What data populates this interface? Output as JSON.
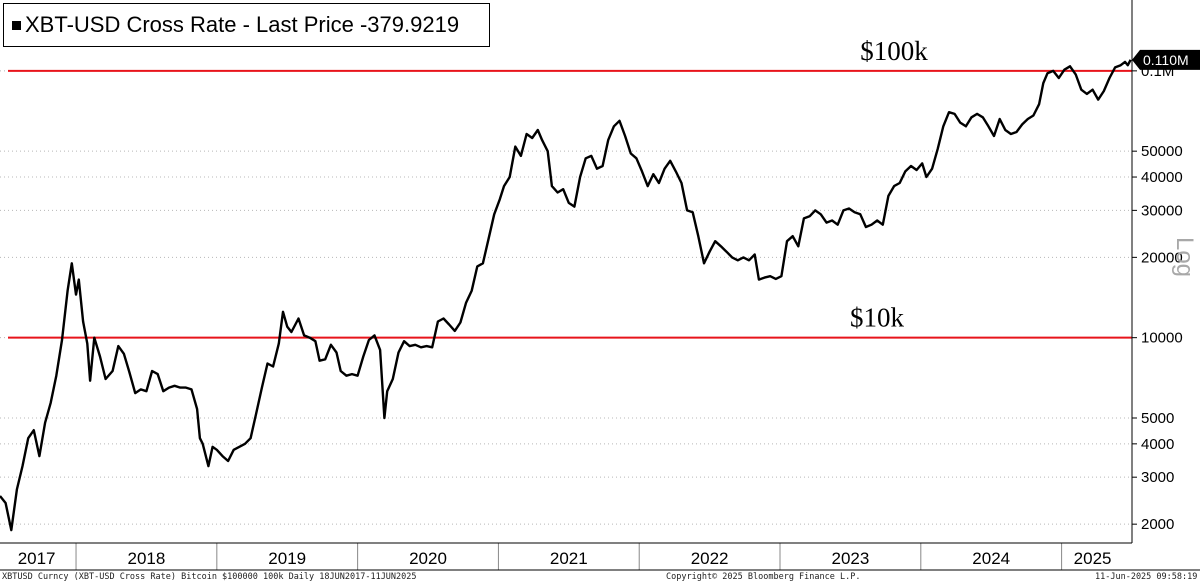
{
  "chart_data": {
    "type": "line",
    "title": "XBT-USD Cross Rate - Last Price  -379.9219",
    "ylabel": "Log",
    "yscale": "log",
    "ylim": [
      1700,
      125000
    ],
    "yticks": [
      {
        "value": 2000,
        "label": "2000"
      },
      {
        "value": 3000,
        "label": "3000"
      },
      {
        "value": 4000,
        "label": "4000"
      },
      {
        "value": 5000,
        "label": "5000"
      },
      {
        "value": 10000,
        "label": "10000"
      },
      {
        "value": 20000,
        "label": "20000"
      },
      {
        "value": 30000,
        "label": "30000"
      },
      {
        "value": 40000,
        "label": "40000"
      },
      {
        "value": 50000,
        "label": "50000"
      },
      {
        "value": 100000,
        "label": "0.1M"
      }
    ],
    "xlim": [
      2017.46,
      2025.5
    ],
    "x_labels": [
      {
        "label": "2017",
        "value": 2017.72
      },
      {
        "label": "2018",
        "value": 2018.5
      },
      {
        "label": "2019",
        "value": 2019.5
      },
      {
        "label": "2020",
        "value": 2020.5
      },
      {
        "label": "2021",
        "value": 2021.5
      },
      {
        "label": "2022",
        "value": 2022.5
      },
      {
        "label": "2023",
        "value": 2023.5
      },
      {
        "label": "2024",
        "value": 2024.5
      },
      {
        "label": "2025",
        "value": 2025.22
      }
    ],
    "x_dividers": [
      2018.0,
      2019.0,
      2020.0,
      2021.0,
      2022.0,
      2023.0,
      2024.0,
      2025.0
    ],
    "reference_lines": [
      {
        "value": 100000,
        "label": "$100k",
        "color": "#e8141b"
      },
      {
        "value": 10000,
        "label": "$10k",
        "color": "#e8141b"
      }
    ],
    "last_value_tag": "0.110M",
    "series": [
      {
        "color": "#000000",
        "points": [
          [
            2017.46,
            2550
          ],
          [
            2017.5,
            2400
          ],
          [
            2017.54,
            1900
          ],
          [
            2017.58,
            2700
          ],
          [
            2017.62,
            3300
          ],
          [
            2017.66,
            4200
          ],
          [
            2017.7,
            4500
          ],
          [
            2017.74,
            3600
          ],
          [
            2017.78,
            4800
          ],
          [
            2017.82,
            5700
          ],
          [
            2017.86,
            7200
          ],
          [
            2017.9,
            9800
          ],
          [
            2017.94,
            15000
          ],
          [
            2017.97,
            19000
          ],
          [
            2018.0,
            14500
          ],
          [
            2018.02,
            16500
          ],
          [
            2018.05,
            11500
          ],
          [
            2018.08,
            9500
          ],
          [
            2018.1,
            6900
          ],
          [
            2018.13,
            10000
          ],
          [
            2018.17,
            8500
          ],
          [
            2018.21,
            7000
          ],
          [
            2018.26,
            7500
          ],
          [
            2018.3,
            9300
          ],
          [
            2018.34,
            8700
          ],
          [
            2018.38,
            7400
          ],
          [
            2018.42,
            6200
          ],
          [
            2018.46,
            6400
          ],
          [
            2018.5,
            6300
          ],
          [
            2018.54,
            7500
          ],
          [
            2018.58,
            7300
          ],
          [
            2018.62,
            6300
          ],
          [
            2018.66,
            6500
          ],
          [
            2018.7,
            6600
          ],
          [
            2018.74,
            6500
          ],
          [
            2018.78,
            6500
          ],
          [
            2018.82,
            6400
          ],
          [
            2018.86,
            5400
          ],
          [
            2018.88,
            4200
          ],
          [
            2018.9,
            4000
          ],
          [
            2018.94,
            3300
          ],
          [
            2018.97,
            3900
          ],
          [
            2019.0,
            3800
          ],
          [
            2019.04,
            3600
          ],
          [
            2019.08,
            3450
          ],
          [
            2019.12,
            3800
          ],
          [
            2019.16,
            3900
          ],
          [
            2019.2,
            4000
          ],
          [
            2019.24,
            4200
          ],
          [
            2019.28,
            5200
          ],
          [
            2019.32,
            6500
          ],
          [
            2019.36,
            8000
          ],
          [
            2019.4,
            7800
          ],
          [
            2019.44,
            9500
          ],
          [
            2019.47,
            12500
          ],
          [
            2019.5,
            11000
          ],
          [
            2019.53,
            10500
          ],
          [
            2019.58,
            11800
          ],
          [
            2019.62,
            10200
          ],
          [
            2019.66,
            10000
          ],
          [
            2019.7,
            9700
          ],
          [
            2019.73,
            8200
          ],
          [
            2019.77,
            8300
          ],
          [
            2019.81,
            9400
          ],
          [
            2019.85,
            8800
          ],
          [
            2019.88,
            7500
          ],
          [
            2019.92,
            7200
          ],
          [
            2019.96,
            7300
          ],
          [
            2020.0,
            7200
          ],
          [
            2020.04,
            8500
          ],
          [
            2020.08,
            9800
          ],
          [
            2020.12,
            10200
          ],
          [
            2020.16,
            9000
          ],
          [
            2020.19,
            5000
          ],
          [
            2020.21,
            6300
          ],
          [
            2020.25,
            7000
          ],
          [
            2020.29,
            8800
          ],
          [
            2020.33,
            9700
          ],
          [
            2020.37,
            9300
          ],
          [
            2020.41,
            9400
          ],
          [
            2020.45,
            9200
          ],
          [
            2020.49,
            9300
          ],
          [
            2020.53,
            9200
          ],
          [
            2020.57,
            11500
          ],
          [
            2020.61,
            11800
          ],
          [
            2020.65,
            11200
          ],
          [
            2020.69,
            10600
          ],
          [
            2020.73,
            11400
          ],
          [
            2020.77,
            13500
          ],
          [
            2020.81,
            15000
          ],
          [
            2020.85,
            18500
          ],
          [
            2020.89,
            19000
          ],
          [
            2020.93,
            23500
          ],
          [
            2020.97,
            29000
          ],
          [
            2021.01,
            33000
          ],
          [
            2021.04,
            37000
          ],
          [
            2021.08,
            40000
          ],
          [
            2021.12,
            52000
          ],
          [
            2021.16,
            48000
          ],
          [
            2021.2,
            58000
          ],
          [
            2021.24,
            56000
          ],
          [
            2021.28,
            60000
          ],
          [
            2021.31,
            55000
          ],
          [
            2021.35,
            50000
          ],
          [
            2021.38,
            37000
          ],
          [
            2021.42,
            35000
          ],
          [
            2021.46,
            36000
          ],
          [
            2021.5,
            32000
          ],
          [
            2021.54,
            31000
          ],
          [
            2021.58,
            40000
          ],
          [
            2021.62,
            47000
          ],
          [
            2021.66,
            48000
          ],
          [
            2021.7,
            43000
          ],
          [
            2021.74,
            44000
          ],
          [
            2021.78,
            55000
          ],
          [
            2021.82,
            62000
          ],
          [
            2021.86,
            65000
          ],
          [
            2021.9,
            57000
          ],
          [
            2021.94,
            49000
          ],
          [
            2021.98,
            47000
          ],
          [
            2022.02,
            42000
          ],
          [
            2022.06,
            37000
          ],
          [
            2022.1,
            41000
          ],
          [
            2022.14,
            38000
          ],
          [
            2022.18,
            43000
          ],
          [
            2022.22,
            46000
          ],
          [
            2022.26,
            42000
          ],
          [
            2022.3,
            38000
          ],
          [
            2022.34,
            30000
          ],
          [
            2022.38,
            29500
          ],
          [
            2022.42,
            24000
          ],
          [
            2022.46,
            19000
          ],
          [
            2022.5,
            21000
          ],
          [
            2022.54,
            23000
          ],
          [
            2022.58,
            22000
          ],
          [
            2022.62,
            21000
          ],
          [
            2022.66,
            20000
          ],
          [
            2022.7,
            19500
          ],
          [
            2022.74,
            20000
          ],
          [
            2022.78,
            19500
          ],
          [
            2022.82,
            20500
          ],
          [
            2022.85,
            16500
          ],
          [
            2022.89,
            16800
          ],
          [
            2022.93,
            17000
          ],
          [
            2022.97,
            16600
          ],
          [
            2023.01,
            17000
          ],
          [
            2023.05,
            23000
          ],
          [
            2023.09,
            24000
          ],
          [
            2023.13,
            22000
          ],
          [
            2023.17,
            28000
          ],
          [
            2023.21,
            28500
          ],
          [
            2023.25,
            30000
          ],
          [
            2023.29,
            29000
          ],
          [
            2023.33,
            27000
          ],
          [
            2023.37,
            27500
          ],
          [
            2023.41,
            26500
          ],
          [
            2023.45,
            30000
          ],
          [
            2023.49,
            30500
          ],
          [
            2023.53,
            29500
          ],
          [
            2023.57,
            29000
          ],
          [
            2023.61,
            26000
          ],
          [
            2023.65,
            26500
          ],
          [
            2023.69,
            27500
          ],
          [
            2023.73,
            26500
          ],
          [
            2023.77,
            34000
          ],
          [
            2023.81,
            37000
          ],
          [
            2023.85,
            38000
          ],
          [
            2023.89,
            42000
          ],
          [
            2023.93,
            44000
          ],
          [
            2023.97,
            42500
          ],
          [
            2024.01,
            45000
          ],
          [
            2024.04,
            40000
          ],
          [
            2024.08,
            43000
          ],
          [
            2024.12,
            51000
          ],
          [
            2024.16,
            62000
          ],
          [
            2024.2,
            70000
          ],
          [
            2024.24,
            69000
          ],
          [
            2024.28,
            64000
          ],
          [
            2024.32,
            62000
          ],
          [
            2024.36,
            67000
          ],
          [
            2024.4,
            69000
          ],
          [
            2024.44,
            67000
          ],
          [
            2024.48,
            62000
          ],
          [
            2024.52,
            57000
          ],
          [
            2024.56,
            66000
          ],
          [
            2024.6,
            60000
          ],
          [
            2024.64,
            58000
          ],
          [
            2024.68,
            59000
          ],
          [
            2024.72,
            63000
          ],
          [
            2024.76,
            66000
          ],
          [
            2024.8,
            68000
          ],
          [
            2024.84,
            75000
          ],
          [
            2024.87,
            90000
          ],
          [
            2024.9,
            98000
          ],
          [
            2024.94,
            100000
          ],
          [
            2024.98,
            94000
          ],
          [
            2025.02,
            101000
          ],
          [
            2025.06,
            104000
          ],
          [
            2025.1,
            97000
          ],
          [
            2025.14,
            85000
          ],
          [
            2025.18,
            82000
          ],
          [
            2025.22,
            85000
          ],
          [
            2025.26,
            78000
          ],
          [
            2025.3,
            84000
          ],
          [
            2025.34,
            94000
          ],
          [
            2025.38,
            103000
          ],
          [
            2025.42,
            105000
          ],
          [
            2025.45,
            108000
          ],
          [
            2025.47,
            105000
          ],
          [
            2025.49,
            110000
          ]
        ]
      }
    ]
  },
  "footer": {
    "left": "XBTUSD Curncy (XBT-USD Cross Rate) Bitcoin $100000 100k  Daily 18JUN2017-11JUN2025",
    "center": "Copyright© 2025 Bloomberg Finance L.P.",
    "right": "11-Jun-2025 09:58:19"
  }
}
